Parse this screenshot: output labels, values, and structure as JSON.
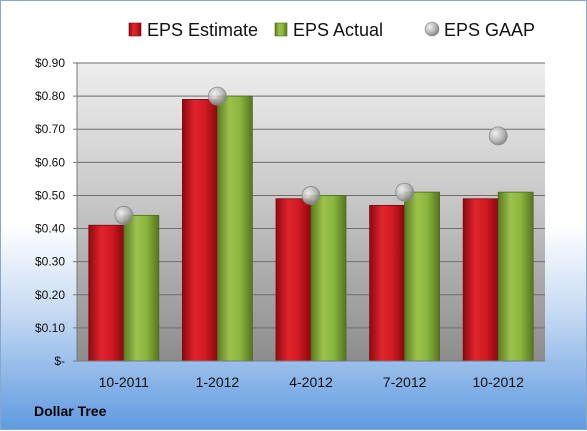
{
  "chart_data": {
    "type": "bar",
    "categories": [
      "10-2011",
      "1-2012",
      "4-2012",
      "7-2012",
      "10-2012"
    ],
    "series": [
      {
        "name": "EPS Estimate",
        "type": "bar",
        "color": "#c0141c",
        "values": [
          0.41,
          0.79,
          0.49,
          0.47,
          0.49
        ]
      },
      {
        "name": "EPS Actual",
        "type": "bar",
        "color": "#7ea33a",
        "values": [
          0.44,
          0.8,
          0.5,
          0.51,
          0.51
        ]
      },
      {
        "name": "EPS GAAP",
        "type": "marker",
        "color": "#b8b8b8",
        "values": [
          0.44,
          0.8,
          0.5,
          0.51,
          0.68
        ]
      }
    ],
    "ylim": [
      0,
      0.9
    ],
    "yticks": [
      0,
      0.1,
      0.2,
      0.3,
      0.4,
      0.5,
      0.6,
      0.7,
      0.8,
      0.9
    ],
    "ytick_labels": [
      "$-",
      "$0.10",
      "$0.20",
      "$0.30",
      "$0.40",
      "$0.50",
      "$0.60",
      "$0.70",
      "$0.80",
      "$0.90"
    ],
    "grid": true,
    "legend_position": "top"
  },
  "company": "Dollar Tree"
}
